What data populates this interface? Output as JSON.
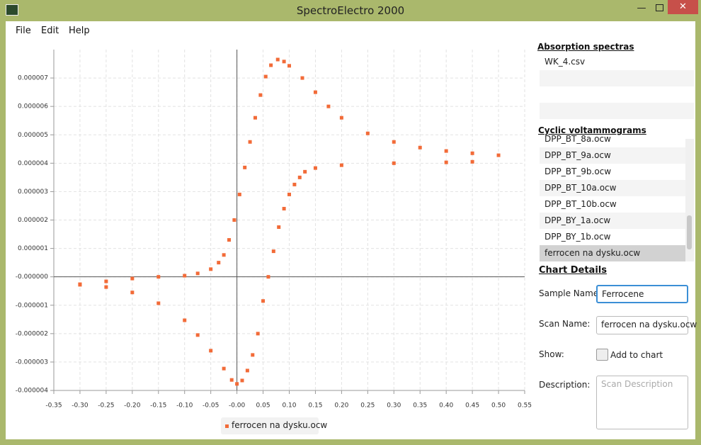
{
  "window": {
    "title": "SpectroElectro 2000"
  },
  "menu": [
    "File",
    "Edit",
    "Help"
  ],
  "sidebar": {
    "absorption_title": "Absorption spectras",
    "absorption_items": [
      "WK_4.csv"
    ],
    "cv_title": "Cyclic voltammograms",
    "cv_items": [
      "DPP_BT_8a.ocw",
      "DPP_BT_9a.ocw",
      "DPP_BT_9b.ocw",
      "DPP_BT_10a.ocw",
      "DPP_BT_10b.ocw",
      "DPP_BY_1a.ocw",
      "DPP_BY_1b.ocw",
      "ferrocen na dysku.ocw"
    ],
    "cv_selected": 7
  },
  "details": {
    "title": "Chart Details",
    "sample_label": "Sample Name:",
    "sample_value": "Ferrocene",
    "scan_label": "Scan Name:",
    "scan_value": "ferrocen na dysku.ocw",
    "show_label": "Show:",
    "checkbox_label": "Add to chart",
    "description_label": "Description:",
    "description_placeholder": "Scan Description"
  },
  "chart_data": {
    "type": "scatter",
    "series": [
      {
        "name": "ferrocen na dysku.ocw",
        "color": "#f26b38",
        "x": [
          -0.3,
          -0.25,
          -0.2,
          -0.15,
          -0.1,
          -0.075,
          -0.05,
          -0.035,
          -0.025,
          -0.015,
          -0.005,
          0.005,
          0.015,
          0.025,
          0.035,
          0.045,
          0.055,
          0.065,
          0.078,
          0.09,
          0.1,
          0.125,
          0.15,
          0.175,
          0.2,
          0.25,
          0.3,
          0.35,
          0.4,
          0.45,
          0.5,
          0.45,
          0.4,
          0.3,
          0.2,
          0.15,
          0.13,
          0.12,
          0.11,
          0.1,
          0.09,
          0.08,
          0.07,
          0.06,
          0.05,
          0.04,
          0.03,
          0.02,
          0.01,
          0.0,
          -0.01,
          -0.025,
          -0.05,
          -0.075,
          -0.1,
          -0.15,
          -0.2,
          -0.25,
          -0.3
        ],
        "values": [
          -2.8e-07,
          -1.6e-07,
          -6e-08,
          0.0,
          4e-08,
          1.2e-07,
          2.7e-07,
          5e-07,
          7.7e-07,
          1.3e-06,
          2e-06,
          2.9e-06,
          3.85e-06,
          4.75e-06,
          5.6e-06,
          6.4e-06,
          7.05e-06,
          7.45e-06,
          7.65e-06,
          7.58e-06,
          7.43e-06,
          7e-06,
          6.5e-06,
          6e-06,
          5.6e-06,
          5.05e-06,
          4.75e-06,
          4.55e-06,
          4.43e-06,
          4.35e-06,
          4.28e-06,
          4.05e-06,
          4.03e-06,
          4e-06,
          3.93e-06,
          3.83e-06,
          3.7e-06,
          3.5e-06,
          3.25e-06,
          2.9e-06,
          2.4e-06,
          1.75e-06,
          9e-07,
          0.0,
          -8.5e-07,
          -2e-06,
          -2.75e-06,
          -3.3e-06,
          -3.65e-06,
          -3.77e-06,
          -3.63e-06,
          -3.23e-06,
          -2.6e-06,
          -2.05e-06,
          -1.53e-06,
          -9.3e-07,
          -5.5e-07,
          -3.6e-07,
          -2.6e-07
        ]
      }
    ],
    "xlim": [
      -0.35,
      0.55
    ],
    "ylim": [
      -4e-06,
      8e-06
    ],
    "xticks": [
      "-0.35",
      {
        "value": -0.3,
        "label": "-0.30"
      },
      -0.25,
      {
        "value": -0.2,
        "label": "-0.20"
      },
      -0.15,
      {
        "value": -0.1,
        "label": "-0.10"
      },
      -0.05,
      {
        "value": 0,
        "label": "-0.00"
      },
      0.05,
      {
        "value": 0.1,
        "label": "0.10"
      },
      0.15,
      {
        "value": 0.2,
        "label": "0.20"
      },
      0.25,
      {
        "value": 0.3,
        "label": "0.30"
      },
      0.35,
      {
        "value": 0.4,
        "label": "0.40"
      },
      0.45,
      {
        "value": 0.5,
        "label": "0.50"
      },
      0.55
    ],
    "yticks": [
      {
        "value": 7e-06,
        "label": "0.000007"
      },
      {
        "value": 6e-06,
        "label": "0.000006"
      },
      {
        "value": 5e-06,
        "label": "0.000005"
      },
      {
        "value": 4e-06,
        "label": "0.000004"
      },
      {
        "value": 3e-06,
        "label": "0.000003"
      },
      {
        "value": 2e-06,
        "label": "0.000002"
      },
      {
        "value": 1e-06,
        "label": "0.000001"
      },
      {
        "value": 0,
        "label": "-0.000000"
      },
      {
        "value": -1e-06,
        "label": "-0.000001"
      },
      {
        "value": -2e-06,
        "label": "-0.000002"
      },
      {
        "value": -3e-06,
        "label": "-0.000003"
      },
      {
        "value": -4e-06,
        "label": "-0.000004"
      }
    ],
    "grid": true
  }
}
